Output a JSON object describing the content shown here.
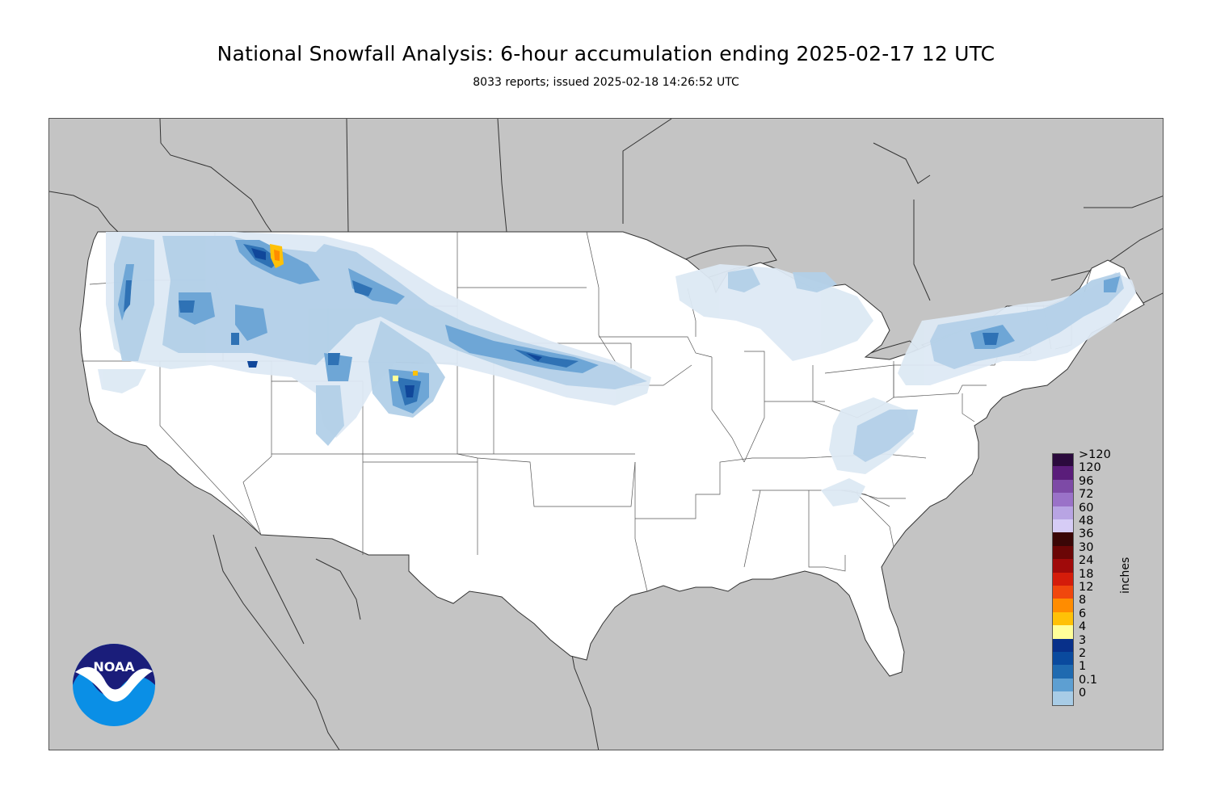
{
  "title": "National Snowfall Analysis: 6-hour accumulation ending 2025-02-17 12 UTC",
  "subtitle": "8033 reports; issued 2025-02-18 14:26:52 UTC",
  "units_label": "inches",
  "logo_text": "NOAA",
  "colors": {
    "ocean_and_foreign_land": "#c4c4c4",
    "us_land": "#ffffff",
    "boundaries": "#333333"
  },
  "legend": [
    {
      "label": ">120",
      "color": "#2b0a3d"
    },
    {
      "label": "120",
      "color": "#5a1d7a"
    },
    {
      "label": "96",
      "color": "#7d4aa6"
    },
    {
      "label": "72",
      "color": "#9a72c8"
    },
    {
      "label": "60",
      "color": "#b8a4e3"
    },
    {
      "label": "48",
      "color": "#d6ccf6"
    },
    {
      "label": "36",
      "color": "#3a0606"
    },
    {
      "label": "30",
      "color": "#6b0606"
    },
    {
      "label": "24",
      "color": "#a00a0a"
    },
    {
      "label": "18",
      "color": "#d41c0a"
    },
    {
      "label": "12",
      "color": "#f0470d"
    },
    {
      "label": "8",
      "color": "#ff8c00"
    },
    {
      "label": "6",
      "color": "#ffc107"
    },
    {
      "label": "4",
      "color": "#ffff99"
    },
    {
      "label": "3",
      "color": "#08308a"
    },
    {
      "label": "2",
      "color": "#0a4a9e"
    },
    {
      "label": "1",
      "color": "#1f6ab0"
    },
    {
      "label": "0.1",
      "color": "#5d9fd2"
    },
    {
      "label": "0",
      "color": "#a8cce6"
    }
  ]
}
